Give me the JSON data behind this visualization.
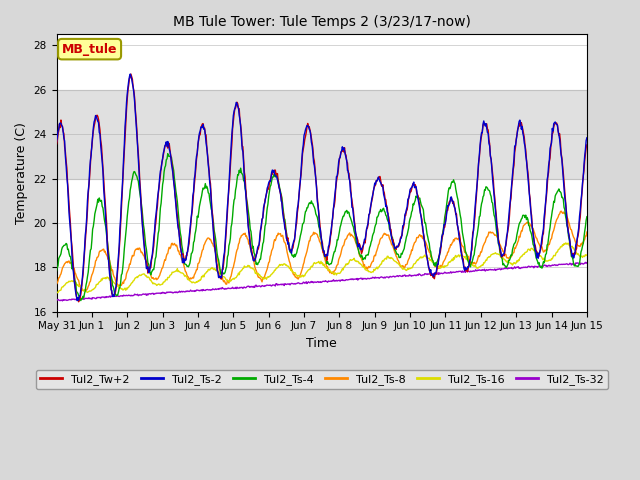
{
  "title": "MB Tule Tower: Tule Temps 2 (3/23/17-now)",
  "xlabel": "Time",
  "ylabel": "Temperature (C)",
  "ylim": [
    16,
    28.5
  ],
  "yticks": [
    16,
    18,
    20,
    22,
    24,
    26,
    28
  ],
  "bg_color": "#d8d8d8",
  "plot_bg_color": "#ffffff",
  "shaded_region": [
    22,
    26
  ],
  "legend_label": "MB_tule",
  "series_colors": {
    "Tul2_Tw+2": "#cc0000",
    "Tul2_Ts-2": "#0000cc",
    "Tul2_Ts-4": "#00aa00",
    "Tul2_Ts-8": "#ff8800",
    "Tul2_Ts-16": "#dddd00",
    "Tul2_Ts-32": "#9900cc"
  },
  "xtick_labels": [
    "May 31",
    "Jun 1",
    "Jun 2",
    "Jun 3",
    "Jun 4",
    "Jun 5",
    "Jun 6",
    "Jun 7",
    "Jun 8",
    "Jun 9",
    "Jun 10",
    "Jun 11",
    "Jun 12",
    "Jun 13",
    "Jun 14",
    "Jun 15"
  ],
  "num_days": 15,
  "figsize": [
    6.4,
    4.8
  ],
  "dpi": 100
}
